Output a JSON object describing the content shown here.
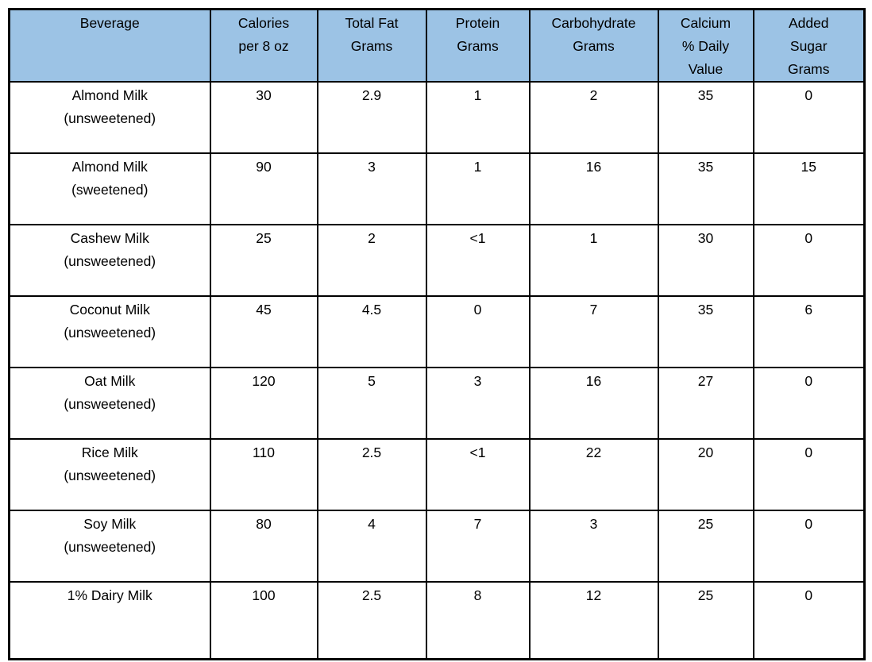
{
  "colors": {
    "header_bg": "#9CC3E5",
    "border": "#000000",
    "text": "#000000",
    "page_background": "#ffffff"
  },
  "table": {
    "headers": [
      {
        "key": "beverage",
        "lines": [
          "Beverage"
        ]
      },
      {
        "key": "calories",
        "lines": [
          "Calories",
          "per 8 oz"
        ]
      },
      {
        "key": "total-fat",
        "lines": [
          "Total Fat",
          "Grams"
        ]
      },
      {
        "key": "protein",
        "lines": [
          "Protein",
          "Grams"
        ]
      },
      {
        "key": "carbohydrate",
        "lines": [
          "Carbohydrate",
          "Grams"
        ]
      },
      {
        "key": "calcium",
        "lines": [
          "Calcium",
          "% Daily",
          "Value"
        ]
      },
      {
        "key": "added-sugar",
        "lines": [
          "Added",
          "Sugar",
          "Grams"
        ]
      }
    ],
    "rows": [
      {
        "beverage_lines": [
          "Almond Milk",
          "(unsweetened)"
        ],
        "values": [
          "30",
          "2.9",
          "1",
          "2",
          "35",
          "0"
        ]
      },
      {
        "beverage_lines": [
          "Almond Milk",
          "(sweetened)"
        ],
        "values": [
          "90",
          "3",
          "1",
          "16",
          "35",
          "15"
        ]
      },
      {
        "beverage_lines": [
          "Cashew Milk",
          "(unsweetened)"
        ],
        "values": [
          "25",
          "2",
          "<1",
          "1",
          "30",
          "0"
        ]
      },
      {
        "beverage_lines": [
          "Coconut Milk",
          "(unsweetened)"
        ],
        "values": [
          "45",
          "4.5",
          "0",
          "7",
          "35",
          "6"
        ]
      },
      {
        "beverage_lines": [
          "Oat Milk",
          "(unsweetened)"
        ],
        "values": [
          "120",
          "5",
          "3",
          "16",
          "27",
          "0"
        ]
      },
      {
        "beverage_lines": [
          "Rice Milk",
          "(unsweetened)"
        ],
        "values": [
          "110",
          "2.5",
          "<1",
          "22",
          "20",
          "0"
        ]
      },
      {
        "beverage_lines": [
          "Soy Milk",
          "(unsweetened)"
        ],
        "values": [
          "80",
          "4",
          "7",
          "3",
          "25",
          "0"
        ]
      },
      {
        "beverage_lines": [
          "1% Dairy Milk"
        ],
        "values": [
          "100",
          "2.5",
          "8",
          "12",
          "25",
          "0"
        ]
      }
    ]
  },
  "chart_data": {
    "type": "table",
    "columns": [
      "Beverage",
      "Calories per 8 oz",
      "Total Fat Grams",
      "Protein Grams",
      "Carbohydrate Grams",
      "Calcium % Daily Value",
      "Added Sugar Grams"
    ],
    "rows": [
      [
        "Almond Milk (unsweetened)",
        "30",
        "2.9",
        "1",
        "2",
        "35",
        "0"
      ],
      [
        "Almond Milk (sweetened)",
        "90",
        "3",
        "1",
        "16",
        "35",
        "15"
      ],
      [
        "Cashew Milk (unsweetened)",
        "25",
        "2",
        "<1",
        "1",
        "30",
        "0"
      ],
      [
        "Coconut Milk (unsweetened)",
        "45",
        "4.5",
        "0",
        "7",
        "35",
        "6"
      ],
      [
        "Oat Milk (unsweetened)",
        "120",
        "5",
        "3",
        "16",
        "27",
        "0"
      ],
      [
        "Rice Milk (unsweetened)",
        "110",
        "2.5",
        "<1",
        "22",
        "20",
        "0"
      ],
      [
        "Soy Milk (unsweetened)",
        "80",
        "4",
        "7",
        "3",
        "25",
        "0"
      ],
      [
        "1% Dairy Milk",
        "100",
        "2.5",
        "8",
        "12",
        "25",
        "0"
      ]
    ]
  }
}
